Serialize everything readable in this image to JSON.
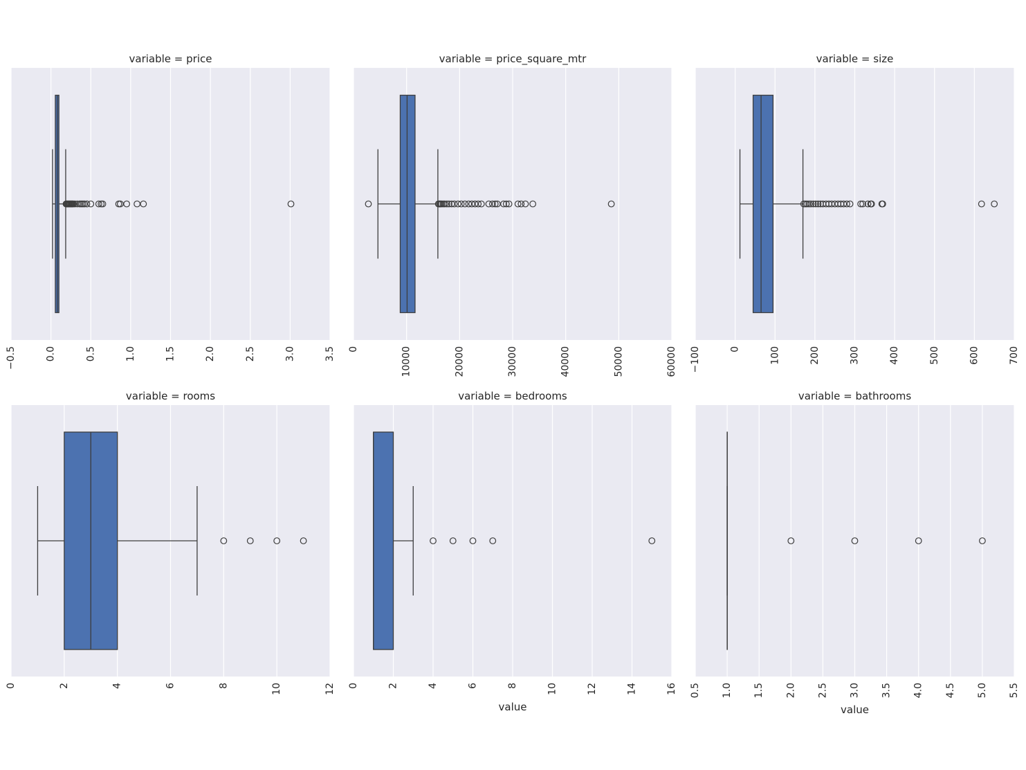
{
  "colors": {
    "background": "#eaeaf2",
    "grid": "#ffffff",
    "box": "#4c72b0",
    "line": "#3d3d3d"
  },
  "chart_data": [
    {
      "type": "box",
      "title": "variable = price",
      "xlabel": "",
      "xlim": [
        -0.5,
        3.5
      ],
      "ticks": [
        -0.5,
        0.0,
        0.5,
        1.0,
        1.5,
        2.0,
        2.5,
        3.0,
        3.5
      ],
      "tick_labels": [
        "−0.5",
        "0.0",
        "0.5",
        "1.0",
        "1.5",
        "2.0",
        "2.5",
        "3.0",
        "3.5"
      ],
      "whisker_low": 0.02,
      "q1": 0.055,
      "median": 0.08,
      "q3": 0.1,
      "whisker_high": 0.185,
      "outliers": [
        0.19,
        0.2,
        0.21,
        0.22,
        0.23,
        0.24,
        0.25,
        0.26,
        0.27,
        0.28,
        0.3,
        0.33,
        0.36,
        0.38,
        0.4,
        0.42,
        0.45,
        0.5,
        0.6,
        0.63,
        0.65,
        0.85,
        0.87,
        0.95,
        1.08,
        1.16,
        3.01
      ]
    },
    {
      "type": "box",
      "title": "variable = price_square_mtr",
      "xlabel": "",
      "xlim": [
        0,
        60000
      ],
      "ticks": [
        0,
        10000,
        20000,
        30000,
        40000,
        50000,
        60000
      ],
      "tick_labels": [
        "0",
        "10000",
        "20000",
        "30000",
        "40000",
        "50000",
        "60000"
      ],
      "whisker_low": 4600,
      "q1": 8800,
      "median": 10100,
      "q3": 11600,
      "whisker_high": 15900,
      "outliers": [
        2800,
        16000,
        16200,
        16400,
        16600,
        16900,
        17200,
        17600,
        18000,
        18500,
        19000,
        19700,
        20300,
        21000,
        21700,
        22300,
        22900,
        23500,
        24100,
        25500,
        26200,
        26700,
        27100,
        28300,
        28800,
        29300,
        31000,
        31600,
        32400,
        33800,
        48600
      ]
    },
    {
      "type": "box",
      "title": "variable = size",
      "xlabel": "",
      "xlim": [
        -100,
        700
      ],
      "ticks": [
        -100,
        0,
        100,
        200,
        300,
        400,
        500,
        600,
        700
      ],
      "tick_labels": [
        "−100",
        "0",
        "100",
        "200",
        "300",
        "400",
        "500",
        "600",
        "700"
      ],
      "whisker_low": 12,
      "q1": 45,
      "median": 65,
      "q3": 95,
      "whisker_high": 170,
      "outliers": [
        172,
        176,
        180,
        185,
        190,
        196,
        202,
        208,
        214,
        220,
        228,
        235,
        242,
        250,
        258,
        265,
        272,
        280,
        288,
        315,
        320,
        333,
        340,
        342,
        368,
        370,
        618,
        650
      ]
    },
    {
      "type": "box",
      "title": "variable = rooms",
      "xlabel": "",
      "xlim": [
        0,
        12
      ],
      "ticks": [
        0,
        2,
        4,
        6,
        8,
        10,
        12
      ],
      "tick_labels": [
        "0",
        "2",
        "4",
        "6",
        "8",
        "10",
        "12"
      ],
      "whisker_low": 1,
      "q1": 2,
      "median": 3,
      "q3": 4,
      "whisker_high": 7,
      "outliers": [
        8,
        9,
        10,
        11
      ]
    },
    {
      "type": "box",
      "title": "variable = bedrooms",
      "xlabel": "value",
      "xlim": [
        0,
        16
      ],
      "ticks": [
        0,
        2,
        4,
        6,
        8,
        10,
        12,
        14,
        16
      ],
      "tick_labels": [
        "0",
        "2",
        "4",
        "6",
        "8",
        "10",
        "12",
        "14",
        "16"
      ],
      "whisker_low": 1,
      "q1": 1,
      "median": 1,
      "q3": 2,
      "whisker_high": 3,
      "outliers": [
        4,
        5,
        6,
        7,
        15
      ]
    },
    {
      "type": "box",
      "title": "variable = bathrooms",
      "xlabel": "value",
      "xlim": [
        0.5,
        5.5
      ],
      "ticks": [
        0.5,
        1.0,
        1.5,
        2.0,
        2.5,
        3.0,
        3.5,
        4.0,
        4.5,
        5.0,
        5.5
      ],
      "tick_labels": [
        "0.5",
        "1.0",
        "1.5",
        "2.0",
        "2.5",
        "3.0",
        "3.5",
        "4.0",
        "4.5",
        "5.0",
        "5.5"
      ],
      "whisker_low": 1,
      "q1": 1,
      "median": 1,
      "q3": 1,
      "whisker_high": 1,
      "outliers": [
        2,
        3,
        4,
        5
      ]
    }
  ]
}
